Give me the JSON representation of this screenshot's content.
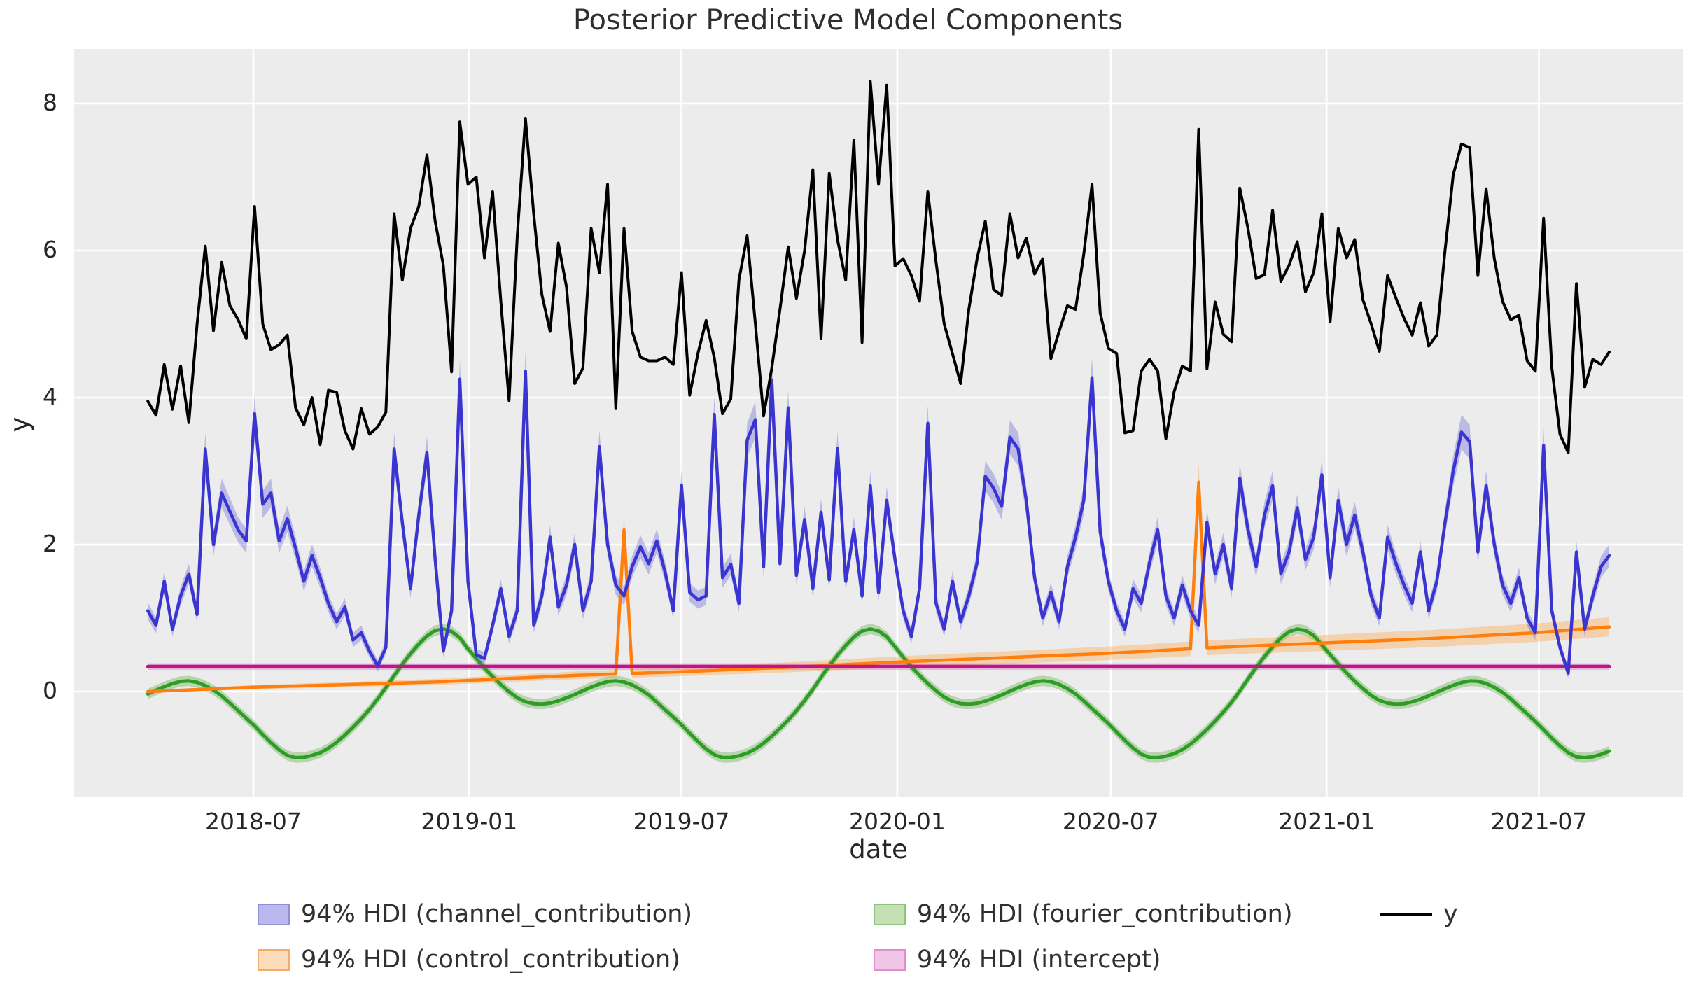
{
  "title": "Posterior Predictive Model Components",
  "axes": {
    "xlabel": "date",
    "ylabel": "y",
    "y_ticks": [
      {
        "value": 0,
        "label": "0"
      },
      {
        "value": 2,
        "label": "2"
      },
      {
        "value": 4,
        "label": "4"
      },
      {
        "value": 6,
        "label": "6"
      },
      {
        "value": 8,
        "label": "8"
      }
    ],
    "x_ticks": [
      {
        "date": "2018-07-01",
        "label": "2018-07"
      },
      {
        "date": "2019-01-01",
        "label": "2019-01"
      },
      {
        "date": "2019-07-01",
        "label": "2019-07"
      },
      {
        "date": "2020-01-01",
        "label": "2020-01"
      },
      {
        "date": "2020-07-01",
        "label": "2020-07"
      },
      {
        "date": "2021-01-01",
        "label": "2021-01"
      },
      {
        "date": "2021-07-01",
        "label": "2021-07"
      }
    ],
    "ylim": [
      -1.44,
      8.74
    ],
    "grid": "white-on-gray"
  },
  "colors": {
    "plot_bg": "#ececec",
    "grid": "#ffffff",
    "y_line": "#000000",
    "channel_line": "#3a35d0",
    "channel_band": "rgba(80,80,215,0.32)",
    "control_line": "#ff7f0e",
    "control_band": "rgba(253,166,68,0.38)",
    "fourier_line": "#2e9d26",
    "fourier_band": "rgba(85,170,60,0.35)",
    "intercept_line": "#c01589",
    "intercept_band": "rgba(222,95,185,0.38)",
    "text": "#262626"
  },
  "legend": {
    "items": [
      {
        "label": "94% HDI (channel_contribution)",
        "type": "patch",
        "swatch": "#b9b9ef",
        "border": "#8f8fdb",
        "col": 1,
        "row": 1
      },
      {
        "label": "94% HDI (control_contribution)",
        "type": "patch",
        "swatch": "#fcdcba",
        "border": "#f3ab66",
        "col": 1,
        "row": 2
      },
      {
        "label": "94% HDI (fourier_contribution)",
        "type": "patch",
        "swatch": "#c5e0b4",
        "border": "#8fc47e",
        "col": 2,
        "row": 1
      },
      {
        "label": "94% HDI (intercept)",
        "type": "patch",
        "swatch": "#f0c6e6",
        "border": "#e18ece",
        "col": 2,
        "row": 2
      },
      {
        "label": "y",
        "type": "line",
        "color": "#000000",
        "col": 3,
        "row": 1
      }
    ]
  },
  "chart_data": {
    "type": "line",
    "title": "Posterior Predictive Model Components",
    "xlabel": "date",
    "ylabel": "y",
    "hdi_label": "94% HDI",
    "x_start_date": "2018-04-02",
    "freq_days": 7,
    "n_points": 179,
    "x_end_date": "2021-08-30",
    "ylim": [
      -1.44,
      8.74
    ],
    "series": [
      {
        "name": "y",
        "style": "jagged-line",
        "color": "#000000",
        "values": [
          3.95,
          3.76,
          4.45,
          3.84,
          4.43,
          3.66,
          5.0,
          6.06,
          4.91,
          5.84,
          5.25,
          5.06,
          4.8,
          6.6,
          5.0,
          4.65,
          4.72,
          4.85,
          3.86,
          3.63,
          4.0,
          3.36,
          4.1,
          4.07,
          3.55,
          3.3,
          3.85,
          3.5,
          3.6,
          3.8,
          6.5,
          5.6,
          6.3,
          6.6,
          7.3,
          6.4,
          5.8,
          4.35,
          7.75,
          6.9,
          7.0,
          5.9,
          6.8,
          5.3,
          3.96,
          6.2,
          7.8,
          6.5,
          5.4,
          4.9,
          6.1,
          5.5,
          4.19,
          4.4,
          6.3,
          5.7,
          6.9,
          3.85,
          6.3,
          4.9,
          4.55,
          4.5,
          4.5,
          4.55,
          4.45,
          5.7,
          4.03,
          4.6,
          5.05,
          4.54,
          3.78,
          3.98,
          5.6,
          6.2,
          5.0,
          3.75,
          4.4,
          5.2,
          6.05,
          5.35,
          6.0,
          7.1,
          4.8,
          7.05,
          6.15,
          5.6,
          7.5,
          4.75,
          8.3,
          6.9,
          8.25,
          5.79,
          5.89,
          5.66,
          5.31,
          6.8,
          5.85,
          5.0,
          4.6,
          4.19,
          5.2,
          5.89,
          6.4,
          5.47,
          5.39,
          6.5,
          5.9,
          6.17,
          5.68,
          5.89,
          4.53,
          4.9,
          5.25,
          5.2,
          5.95,
          6.9,
          5.15,
          4.67,
          4.6,
          3.52,
          3.55,
          4.36,
          4.52,
          4.36,
          3.44,
          4.08,
          4.43,
          4.36,
          7.65,
          4.39,
          5.3,
          4.86,
          4.76,
          6.85,
          6.3,
          5.62,
          5.67,
          6.55,
          5.58,
          5.8,
          6.12,
          5.44,
          5.7,
          6.5,
          5.03,
          6.3,
          5.9,
          6.15,
          5.33,
          5.0,
          4.63,
          5.66,
          5.36,
          5.08,
          4.85,
          5.29,
          4.7,
          4.85,
          6.0,
          7.03,
          7.45,
          7.4,
          5.66,
          6.84,
          5.89,
          5.31,
          5.06,
          5.12,
          4.5,
          4.36,
          6.44,
          4.41,
          3.5,
          3.25,
          5.55,
          4.14,
          4.52,
          4.45,
          4.62
        ]
      },
      {
        "name": "channel_contribution",
        "style": "jagged-line-with-hdi-band",
        "hdi": "94%",
        "color": "#3a35d0",
        "band_halfwidth_base": 0.06,
        "band_halfwidth_per_unit": 0.05,
        "values": [
          1.1,
          0.9,
          1.5,
          0.85,
          1.3,
          1.6,
          1.05,
          3.3,
          2.0,
          2.7,
          2.45,
          2.2,
          2.05,
          3.78,
          2.55,
          2.7,
          2.05,
          2.35,
          1.95,
          1.5,
          1.85,
          1.55,
          1.2,
          0.95,
          1.15,
          0.7,
          0.8,
          0.55,
          0.35,
          0.6,
          3.3,
          2.3,
          1.4,
          2.4,
          3.25,
          1.8,
          0.55,
          1.1,
          4.25,
          1.5,
          0.5,
          0.45,
          0.9,
          1.4,
          0.75,
          1.1,
          4.36,
          0.9,
          1.3,
          2.1,
          1.15,
          1.45,
          2.0,
          1.1,
          1.5,
          3.33,
          2.0,
          1.45,
          1.3,
          1.7,
          1.97,
          1.74,
          2.05,
          1.63,
          1.1,
          2.81,
          1.35,
          1.25,
          1.3,
          3.77,
          1.55,
          1.73,
          1.2,
          3.42,
          3.7,
          1.7,
          4.24,
          1.74,
          3.86,
          1.58,
          2.34,
          1.4,
          2.44,
          1.52,
          3.31,
          1.5,
          2.2,
          1.3,
          2.8,
          1.35,
          2.6,
          1.8,
          1.1,
          0.75,
          1.4,
          3.65,
          1.2,
          0.85,
          1.5,
          0.95,
          1.3,
          1.75,
          2.93,
          2.77,
          2.52,
          3.46,
          3.3,
          2.6,
          1.55,
          1.0,
          1.35,
          0.95,
          1.7,
          2.1,
          2.6,
          4.27,
          2.17,
          1.5,
          1.1,
          0.85,
          1.4,
          1.2,
          1.75,
          2.2,
          1.3,
          1.0,
          1.45,
          1.1,
          0.9,
          2.3,
          1.6,
          2.0,
          1.4,
          2.9,
          2.2,
          1.7,
          2.4,
          2.8,
          1.6,
          1.9,
          2.5,
          1.8,
          2.1,
          2.95,
          1.55,
          2.6,
          2.0,
          2.4,
          1.9,
          1.3,
          1.0,
          2.1,
          1.75,
          1.45,
          1.2,
          1.9,
          1.1,
          1.5,
          2.3,
          3.0,
          3.53,
          3.4,
          1.9,
          2.8,
          2.0,
          1.45,
          1.2,
          1.55,
          1.0,
          0.8,
          3.35,
          1.1,
          0.6,
          0.25,
          1.9,
          0.85,
          1.3,
          1.7,
          1.85
        ]
      },
      {
        "name": "control_contribution",
        "style": "trend-line-with-spikes-and-hdi-band",
        "hdi": "94%",
        "color": "#ff7f0e",
        "trend_points": [
          [
            0,
            0.0
          ],
          [
            13,
            0.06
          ],
          [
            26,
            0.1
          ],
          [
            35,
            0.13
          ],
          [
            52,
            0.22
          ],
          [
            65,
            0.27
          ],
          [
            78,
            0.33
          ],
          [
            91,
            0.4
          ],
          [
            104,
            0.46
          ],
          [
            117,
            0.52
          ],
          [
            130,
            0.6
          ],
          [
            143,
            0.66
          ],
          [
            156,
            0.72
          ],
          [
            169,
            0.8
          ],
          [
            178,
            0.88
          ]
        ],
        "spikes": [
          {
            "week": 58,
            "date": "2019-05-13",
            "value": 2.2
          },
          {
            "week": 128,
            "date": "2020-09-14",
            "value": 2.85
          }
        ],
        "band_halfwidth_start": 0.02,
        "band_halfwidth_end": 0.13,
        "band_halfwidth_spike": 0.25
      },
      {
        "name": "fourier_contribution",
        "style": "smooth-yearly-seasonality-with-hdi-band",
        "hdi": "94%",
        "color": "#2e9d26",
        "band_halfwidth": 0.07,
        "yearly_anchors_day_value": [
          [
            1,
            0.55
          ],
          [
            15,
            0.3
          ],
          [
            32,
            0.04
          ],
          [
            46,
            -0.12
          ],
          [
            60,
            -0.17
          ],
          [
            74,
            -0.14
          ],
          [
            91,
            -0.04
          ],
          [
            105,
            0.06
          ],
          [
            121,
            0.14
          ],
          [
            135,
            0.12
          ],
          [
            152,
            -0.02
          ],
          [
            166,
            -0.22
          ],
          [
            182,
            -0.45
          ],
          [
            196,
            -0.68
          ],
          [
            210,
            -0.86
          ],
          [
            220,
            -0.9
          ],
          [
            232,
            -0.87
          ],
          [
            244,
            -0.79
          ],
          [
            258,
            -0.62
          ],
          [
            274,
            -0.37
          ],
          [
            288,
            -0.1
          ],
          [
            305,
            0.28
          ],
          [
            319,
            0.57
          ],
          [
            332,
            0.78
          ],
          [
            342,
            0.85
          ],
          [
            352,
            0.81
          ],
          [
            360,
            0.7
          ]
        ]
      },
      {
        "name": "intercept",
        "style": "constant-line-with-hdi-band",
        "hdi": "94%",
        "color": "#c01589",
        "value": 0.34,
        "band_halfwidth": 0.045
      }
    ]
  }
}
